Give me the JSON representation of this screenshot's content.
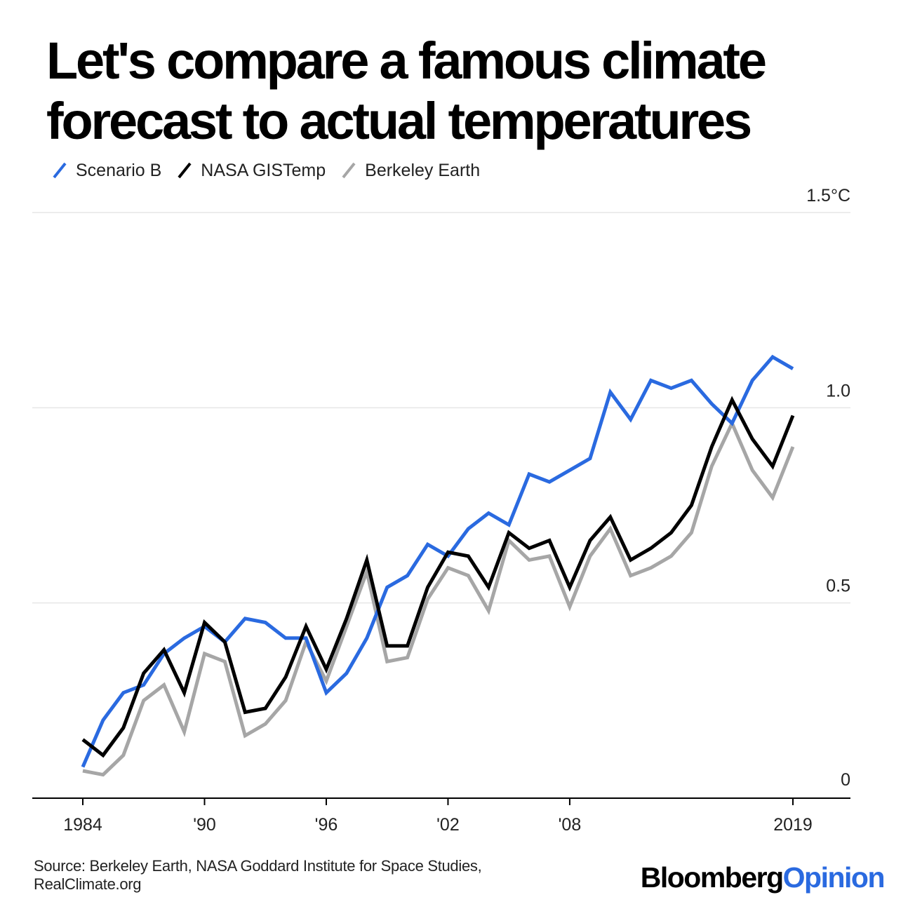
{
  "title_lines": [
    "Let's compare a famous climate",
    "forecast to actual temperatures"
  ],
  "footer": {
    "source_lines": [
      "Source: Berkeley Earth, NASA Goddard Institute for Space Studies,",
      "RealClimate.org"
    ],
    "brand_primary": "Bloomberg",
    "brand_secondary": "Opinion"
  },
  "chart_data": {
    "type": "line",
    "title": "Let's compare a famous climate forecast to actual temperatures",
    "ylim": [
      0,
      1.5
    ],
    "xlim": [
      1984,
      2019
    ],
    "yticks": [
      {
        "value": 1.5,
        "label": "1.5°C"
      },
      {
        "value": 1.0,
        "label": "1.0"
      },
      {
        "value": 0.5,
        "label": "0.5"
      },
      {
        "value": 0,
        "label": "0"
      }
    ],
    "xticks": [
      {
        "value": 1984,
        "label": "1984"
      },
      {
        "value": 1990,
        "label": "'90"
      },
      {
        "value": 1996,
        "label": "'96"
      },
      {
        "value": 2002,
        "label": "'02"
      },
      {
        "value": 2008,
        "label": "'08"
      },
      {
        "value": 2019,
        "label": "2019"
      }
    ],
    "grid": true,
    "legend_position": "top-left",
    "x": [
      1984,
      1985,
      1986,
      1987,
      1988,
      1989,
      1990,
      1991,
      1992,
      1993,
      1994,
      1995,
      1996,
      1997,
      1998,
      1999,
      2000,
      2001,
      2002,
      2003,
      2004,
      2005,
      2006,
      2007,
      2008,
      2009,
      2010,
      2011,
      2012,
      2013,
      2014,
      2015,
      2016,
      2017,
      2018,
      2019
    ],
    "series": [
      {
        "name": "Scenario B",
        "color": "#2a6ae0",
        "values": [
          0.08,
          0.2,
          0.27,
          0.29,
          0.37,
          0.41,
          0.44,
          0.4,
          0.46,
          0.45,
          0.41,
          0.41,
          0.27,
          0.32,
          0.41,
          0.54,
          0.57,
          0.65,
          0.62,
          0.69,
          0.73,
          0.7,
          0.83,
          0.81,
          0.84,
          0.87,
          1.04,
          0.97,
          1.07,
          1.05,
          1.07,
          1.01,
          0.96,
          1.07,
          1.13,
          1.1
        ]
      },
      {
        "name": "NASA GISTemp",
        "color": "#000000",
        "values": [
          0.15,
          0.11,
          0.18,
          0.32,
          0.38,
          0.27,
          0.45,
          0.4,
          0.22,
          0.23,
          0.31,
          0.44,
          0.33,
          0.46,
          0.61,
          0.39,
          0.39,
          0.54,
          0.63,
          0.62,
          0.54,
          0.68,
          0.64,
          0.66,
          0.54,
          0.66,
          0.72,
          0.61,
          0.64,
          0.68,
          0.75,
          0.9,
          1.02,
          0.92,
          0.85,
          0.98
        ]
      },
      {
        "name": "Berkeley Earth",
        "color": "#a6a6a6",
        "values": [
          0.07,
          0.06,
          0.11,
          0.25,
          0.29,
          0.17,
          0.37,
          0.35,
          0.16,
          0.19,
          0.25,
          0.4,
          0.3,
          0.44,
          0.58,
          0.35,
          0.36,
          0.51,
          0.59,
          0.57,
          0.48,
          0.66,
          0.61,
          0.62,
          0.49,
          0.62,
          0.69,
          0.57,
          0.59,
          0.62,
          0.68,
          0.85,
          0.96,
          0.84,
          0.77,
          0.9
        ]
      }
    ]
  }
}
